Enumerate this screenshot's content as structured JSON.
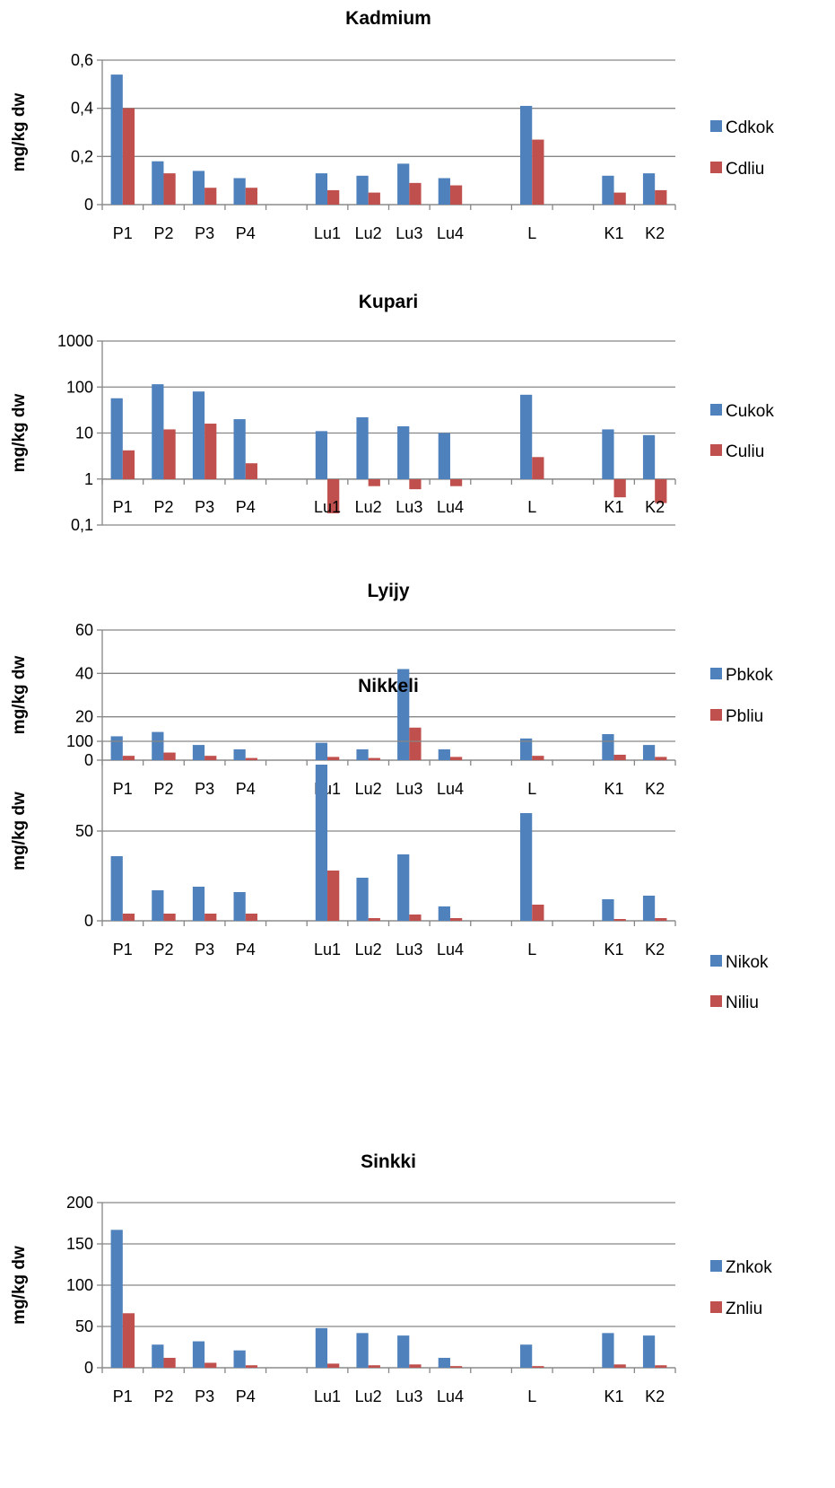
{
  "colors": {
    "series1": "#4F81BD",
    "series2": "#C0504D",
    "axis": "#868686",
    "grid": "#868686"
  },
  "chart_data": [
    {
      "type": "bar",
      "title": "Kadmium",
      "ylabel": "mg/kg dw",
      "xlabel": "",
      "scale": "linear",
      "ylim": [
        0,
        0.6
      ],
      "yticks": [
        "0",
        "0,2",
        "0,4",
        "0,6"
      ],
      "ytick_values": [
        0,
        0.2,
        0.4,
        0.6
      ],
      "categories": [
        "P1",
        "P2",
        "P3",
        "P4",
        "",
        "Lu1",
        "Lu2",
        "Lu3",
        "Lu4",
        "",
        "L",
        "",
        "K1",
        "K2"
      ],
      "series": [
        {
          "name": "Cdkok",
          "values": [
            0.54,
            0.18,
            0.14,
            0.11,
            null,
            0.13,
            0.12,
            0.17,
            0.11,
            null,
            0.41,
            null,
            0.12,
            0.13
          ]
        },
        {
          "name": "Cdliu",
          "values": [
            0.4,
            0.13,
            0.07,
            0.07,
            null,
            0.06,
            0.05,
            0.09,
            0.08,
            null,
            0.27,
            null,
            0.05,
            0.06
          ]
        }
      ],
      "grid": true,
      "legend": "right"
    },
    {
      "type": "bar",
      "title": "Kupari",
      "ylabel": "mg/kg dw",
      "xlabel": "",
      "scale": "log",
      "ylim": [
        0.1,
        1000
      ],
      "yticks": [
        "0,1",
        "1",
        "10",
        "100",
        "1000"
      ],
      "ytick_values": [
        0.1,
        1,
        10,
        100,
        1000
      ],
      "categories": [
        "P1",
        "P2",
        "P3",
        "P4",
        "",
        "Lu1",
        "Lu2",
        "Lu3",
        "Lu4",
        "",
        "L",
        "",
        "K1",
        "K2"
      ],
      "series": [
        {
          "name": "Cukok",
          "values": [
            57,
            115,
            80,
            20,
            null,
            11,
            22,
            14,
            10,
            null,
            68,
            null,
            12,
            9
          ]
        },
        {
          "name": "Culiu",
          "values": [
            4.2,
            12,
            16,
            2.2,
            null,
            0.18,
            0.7,
            0.6,
            0.7,
            null,
            3,
            null,
            0.4,
            0.3
          ]
        }
      ],
      "grid": true,
      "legend": "right"
    },
    {
      "type": "bar",
      "title": "Lyijy",
      "ylabel": "mg/kg dw",
      "xlabel": "",
      "scale": "linear",
      "ylim": [
        0,
        60
      ],
      "yticks": [
        "0",
        "20",
        "40",
        "60"
      ],
      "ytick_values": [
        0,
        20,
        40,
        60
      ],
      "categories": [
        "P1",
        "P2",
        "P3",
        "P4",
        "",
        "Lu1",
        "Lu2",
        "Lu3",
        "Lu4",
        "",
        "L",
        "",
        "K1",
        "K2"
      ],
      "series": [
        {
          "name": "Pbkok",
          "values": [
            11,
            13,
            7,
            5,
            null,
            8,
            5,
            42,
            5,
            null,
            10,
            null,
            12,
            7
          ]
        },
        {
          "name": "Pbliu",
          "values": [
            2,
            3.5,
            2,
            1,
            null,
            1.5,
            1,
            15,
            1.5,
            null,
            2,
            null,
            2.5,
            1.5
          ]
        }
      ],
      "grid": true,
      "legend": "right"
    },
    {
      "type": "bar",
      "title": "Nikkeli",
      "ylabel": "mg/kg dw",
      "xlabel": "",
      "scale": "linear",
      "ylim": [
        0,
        100
      ],
      "yticks": [
        "0",
        "50",
        "100"
      ],
      "ytick_values": [
        0,
        50,
        100
      ],
      "categories": [
        "P1",
        "P2",
        "P3",
        "P4",
        "",
        "Lu1",
        "Lu2",
        "Lu3",
        "Lu4",
        "",
        "L",
        "",
        "K1",
        "K2"
      ],
      "series": [
        {
          "name": "Nikok",
          "values": [
            36,
            17,
            19,
            16,
            null,
            87,
            24,
            37,
            8,
            null,
            60,
            null,
            12,
            14
          ]
        },
        {
          "name": "Niliu",
          "values": [
            4,
            4,
            4,
            4,
            null,
            28,
            1.5,
            3.5,
            1.5,
            null,
            9,
            null,
            1,
            1.5
          ]
        }
      ],
      "grid": true,
      "legend": "right"
    },
    {
      "type": "bar",
      "title": "Sinkki",
      "ylabel": "mg/kg dw",
      "xlabel": "",
      "scale": "linear",
      "ylim": [
        0,
        200
      ],
      "yticks": [
        "0",
        "50",
        "100",
        "150",
        "200"
      ],
      "ytick_values": [
        0,
        50,
        100,
        150,
        200
      ],
      "categories": [
        "P1",
        "P2",
        "P3",
        "P4",
        "",
        "Lu1",
        "Lu2",
        "Lu3",
        "Lu4",
        "",
        "L",
        "",
        "K1",
        "K2"
      ],
      "series": [
        {
          "name": "Znkok",
          "values": [
            167,
            28,
            32,
            21,
            null,
            48,
            42,
            39,
            12,
            null,
            28,
            null,
            42,
            39
          ]
        },
        {
          "name": "Znliu",
          "values": [
            66,
            12,
            6,
            3,
            null,
            5,
            3,
            4,
            2,
            null,
            2,
            null,
            4,
            3
          ]
        }
      ],
      "grid": true,
      "legend": "right"
    }
  ]
}
